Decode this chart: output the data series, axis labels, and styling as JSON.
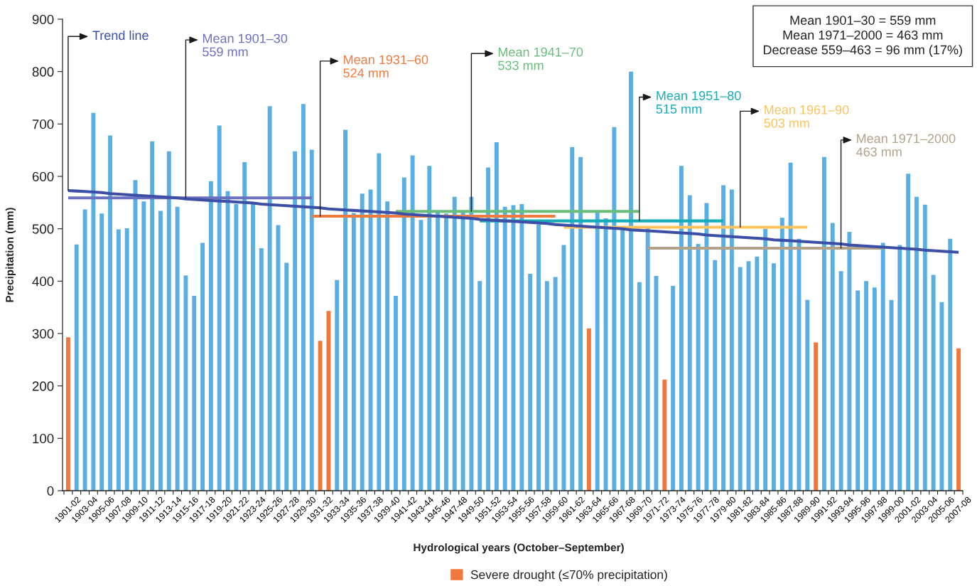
{
  "chart_data": {
    "type": "bar",
    "xlabel": "Hydrological years (October–September)",
    "ylabel": "Precipitation (mm)",
    "categories": [
      "1901-02",
      null,
      "1903-04",
      null,
      "1905-06",
      null,
      "1907-08",
      null,
      "1909-10",
      null,
      "1911-12",
      null,
      "1913-14",
      null,
      "1915-16",
      null,
      "1917-18",
      null,
      "1919-20",
      null,
      "1921-22",
      null,
      "1923-24",
      null,
      "1925-26",
      null,
      "1927-28",
      null,
      "1929-30",
      null,
      "1931-32",
      null,
      "1933-34",
      null,
      "1935-36",
      null,
      "1937-38",
      null,
      "1939-40",
      null,
      "1941-42",
      null,
      "1943-44",
      null,
      "1945-46",
      null,
      "1947-48",
      null,
      "1949-50",
      null,
      "1951-52",
      null,
      "1953-54",
      null,
      "1955-56",
      null,
      "1957-58",
      null,
      "1959-60",
      null,
      "1961-62",
      null,
      "1963-64",
      null,
      "1965-66",
      null,
      "1967-68",
      null,
      "1969-70",
      null,
      "1971-72",
      null,
      "1973-74",
      null,
      "1975-76",
      null,
      "1977-78",
      null,
      "1979-80",
      null,
      "1981-82",
      null,
      "1983-84",
      null,
      "1985-86",
      null,
      "1987-88",
      null,
      "1989-90",
      null,
      "1991-92",
      null,
      "1993-94",
      null,
      "1995-96",
      null,
      "1997-98",
      null,
      "1999-00",
      null,
      "2001-02",
      null,
      "2003-04",
      null,
      "2005-06",
      null,
      "2007-08"
    ],
    "stacked": true,
    "series": [
      {
        "color": "#59afe1",
        "values": [
          null,
          470,
          537,
          721,
          529,
          678,
          499,
          501,
          593,
          552,
          667,
          534,
          648,
          542,
          411,
          372,
          473,
          591,
          697,
          572,
          547,
          627,
          547,
          463,
          734,
          507,
          435,
          648,
          738,
          651,
          null,
          null,
          402,
          689,
          530,
          567,
          575,
          644,
          552,
          372,
          598,
          640,
          517,
          620,
          535,
          529,
          561,
          533,
          561,
          400,
          617,
          665,
          542,
          545,
          547,
          414,
          508,
          400,
          408,
          469,
          656,
          637,
          null,
          533,
          520,
          694,
          500,
          800,
          398,
          502,
          410,
          null,
          391,
          620,
          564,
          471,
          549,
          440,
          583,
          575,
          427,
          438,
          447,
          500,
          434,
          521,
          626,
          481,
          364,
          null,
          637,
          511,
          419,
          494,
          382,
          400,
          388,
          473,
          364,
          469,
          605,
          561,
          546,
          412,
          360,
          481,
          null
        ]
      },
      {
        "name": "Severe drought (≤70% precipitation)",
        "color": "#f0783c",
        "values": [
          293,
          null,
          null,
          null,
          null,
          null,
          null,
          null,
          null,
          null,
          null,
          null,
          null,
          null,
          null,
          null,
          null,
          null,
          null,
          null,
          null,
          null,
          null,
          null,
          null,
          null,
          null,
          null,
          null,
          null,
          286,
          343,
          null,
          null,
          null,
          null,
          null,
          null,
          null,
          null,
          null,
          null,
          null,
          null,
          null,
          null,
          null,
          null,
          null,
          null,
          null,
          null,
          null,
          null,
          null,
          null,
          null,
          null,
          null,
          null,
          null,
          null,
          310,
          null,
          null,
          null,
          null,
          null,
          null,
          null,
          null,
          212,
          null,
          null,
          null,
          null,
          null,
          null,
          null,
          null,
          null,
          null,
          null,
          null,
          null,
          null,
          null,
          null,
          null,
          283,
          null,
          null,
          null,
          null,
          null,
          null,
          null,
          null,
          null,
          null,
          null,
          null,
          null,
          null,
          null,
          null,
          272
        ]
      },
      {
        "type": "line",
        "color": "#6a70be",
        "values": [
          559,
          559,
          559,
          559,
          559,
          559,
          559,
          559,
          559,
          559,
          559,
          559,
          559,
          559,
          559,
          559,
          559,
          559,
          559,
          559,
          559,
          559,
          559,
          559,
          559,
          559,
          559,
          559,
          559,
          559,
          null,
          null,
          null,
          null,
          null,
          null,
          null,
          null,
          null,
          null,
          null,
          null,
          null,
          null,
          null,
          null,
          null,
          null,
          null,
          null,
          null,
          null,
          null,
          null,
          null,
          null,
          null,
          null,
          null,
          null,
          null,
          null,
          null,
          null,
          null,
          null,
          null,
          null,
          null,
          null,
          null,
          null,
          null,
          null,
          null,
          null,
          null,
          null,
          null,
          null,
          null,
          null,
          null,
          null,
          null,
          null,
          null,
          null,
          null,
          null,
          null,
          null,
          null,
          null,
          null,
          null,
          null,
          null,
          null,
          null,
          null,
          null,
          null,
          null,
          null,
          null,
          null
        ]
      },
      {
        "type": "line",
        "color": "#ef7a3e",
        "values": [
          null,
          null,
          null,
          null,
          null,
          null,
          null,
          null,
          null,
          null,
          null,
          null,
          null,
          null,
          null,
          null,
          null,
          null,
          null,
          null,
          null,
          null,
          null,
          null,
          null,
          null,
          null,
          null,
          null,
          524,
          524,
          524,
          524,
          524,
          524,
          524,
          524,
          524,
          524,
          524,
          524,
          524,
          524,
          524,
          524,
          524,
          524,
          524,
          524,
          524,
          524,
          524,
          524,
          524,
          524,
          524,
          524,
          524,
          524,
          null,
          null,
          null,
          null,
          null,
          null,
          null,
          null,
          null,
          null,
          null,
          null,
          null,
          null,
          null,
          null,
          null,
          null,
          null,
          null,
          null,
          null,
          null,
          null,
          null,
          null,
          null,
          null,
          null,
          null,
          null,
          null,
          null,
          null,
          null,
          null,
          null,
          null,
          null,
          null,
          null,
          null,
          null,
          null,
          null,
          null,
          null,
          null
        ]
      },
      {
        "type": "line",
        "color": "#68bd78",
        "values": [
          null,
          null,
          null,
          null,
          null,
          null,
          null,
          null,
          null,
          null,
          null,
          null,
          null,
          null,
          null,
          null,
          null,
          null,
          null,
          null,
          null,
          null,
          null,
          null,
          null,
          null,
          null,
          null,
          null,
          null,
          null,
          null,
          null,
          null,
          null,
          null,
          null,
          null,
          null,
          533,
          533,
          533,
          533,
          533,
          533,
          533,
          533,
          533,
          533,
          533,
          533,
          533,
          533,
          533,
          533,
          533,
          533,
          533,
          533,
          533,
          533,
          533,
          533,
          533,
          533,
          533,
          533,
          533,
          533,
          null,
          null,
          null,
          null,
          null,
          null,
          null,
          null,
          null,
          null,
          null,
          null,
          null,
          null,
          null,
          null,
          null,
          null,
          null,
          null,
          null,
          null,
          null,
          null,
          null,
          null,
          null,
          null,
          null,
          null,
          null,
          null,
          null,
          null,
          null,
          null,
          null,
          null
        ]
      },
      {
        "type": "line",
        "color": "#15adb7",
        "values": [
          null,
          null,
          null,
          null,
          null,
          null,
          null,
          null,
          null,
          null,
          null,
          null,
          null,
          null,
          null,
          null,
          null,
          null,
          null,
          null,
          null,
          null,
          null,
          null,
          null,
          null,
          null,
          null,
          null,
          null,
          null,
          null,
          null,
          null,
          null,
          null,
          null,
          null,
          null,
          null,
          null,
          null,
          null,
          null,
          null,
          null,
          null,
          null,
          null,
          515,
          515,
          515,
          515,
          515,
          515,
          515,
          515,
          515,
          515,
          515,
          515,
          515,
          515,
          515,
          515,
          515,
          515,
          515,
          515,
          515,
          515,
          515,
          515,
          515,
          515,
          515,
          515,
          515,
          515,
          null,
          null,
          null,
          null,
          null,
          null,
          null,
          null,
          null,
          null,
          null,
          null,
          null,
          null,
          null,
          null,
          null,
          null,
          null,
          null,
          null,
          null,
          null,
          null,
          null,
          null,
          null,
          null
        ]
      },
      {
        "type": "line",
        "color": "#fdc35a",
        "values": [
          null,
          null,
          null,
          null,
          null,
          null,
          null,
          null,
          null,
          null,
          null,
          null,
          null,
          null,
          null,
          null,
          null,
          null,
          null,
          null,
          null,
          null,
          null,
          null,
          null,
          null,
          null,
          null,
          null,
          null,
          null,
          null,
          null,
          null,
          null,
          null,
          null,
          null,
          null,
          null,
          null,
          null,
          null,
          null,
          null,
          null,
          null,
          null,
          null,
          null,
          null,
          null,
          null,
          null,
          null,
          null,
          null,
          null,
          null,
          503,
          503,
          503,
          503,
          503,
          503,
          503,
          503,
          503,
          503,
          503,
          503,
          503,
          503,
          503,
          503,
          503,
          503,
          503,
          503,
          503,
          503,
          503,
          503,
          503,
          503,
          503,
          503,
          503,
          503,
          null,
          null,
          null,
          null,
          null,
          null,
          null,
          null,
          null,
          null,
          null,
          null,
          null,
          null,
          null,
          null,
          null,
          null
        ]
      },
      {
        "type": "line",
        "color": "#b2a289",
        "values": [
          null,
          null,
          null,
          null,
          null,
          null,
          null,
          null,
          null,
          null,
          null,
          null,
          null,
          null,
          null,
          null,
          null,
          null,
          null,
          null,
          null,
          null,
          null,
          null,
          null,
          null,
          null,
          null,
          null,
          null,
          null,
          null,
          null,
          null,
          null,
          null,
          null,
          null,
          null,
          null,
          null,
          null,
          null,
          null,
          null,
          null,
          null,
          null,
          null,
          null,
          null,
          null,
          null,
          null,
          null,
          null,
          null,
          null,
          null,
          null,
          null,
          null,
          null,
          null,
          null,
          null,
          null,
          null,
          null,
          463,
          463,
          463,
          463,
          463,
          463,
          463,
          463,
          463,
          463,
          463,
          463,
          463,
          463,
          463,
          463,
          463,
          463,
          463,
          463,
          463,
          463,
          463,
          463,
          463,
          463,
          463,
          463,
          463,
          null,
          null,
          null,
          null,
          null,
          null,
          null,
          null,
          null
        ]
      },
      {
        "type": "line",
        "color": "#3c4ea6",
        "values": [
          573,
          572,
          571,
          570,
          569,
          567,
          566,
          565,
          564,
          563,
          562,
          561,
          560,
          559,
          557,
          556,
          555,
          554,
          553,
          552,
          551,
          550,
          549,
          547,
          546,
          545,
          544,
          543,
          542,
          541,
          540,
          538,
          537,
          536,
          535,
          534,
          533,
          532,
          531,
          530,
          528,
          527,
          526,
          525,
          524,
          523,
          522,
          521,
          520,
          518,
          517,
          516,
          515,
          514,
          513,
          512,
          511,
          510,
          508,
          507,
          506,
          505,
          504,
          503,
          502,
          501,
          500,
          498,
          497,
          496,
          495,
          494,
          493,
          492,
          491,
          490,
          488,
          487,
          486,
          485,
          484,
          483,
          482,
          481,
          479,
          478,
          477,
          476,
          475,
          474,
          473,
          472,
          471,
          469,
          468,
          467,
          466,
          465,
          464,
          463,
          462,
          461,
          459,
          458,
          457,
          456,
          455
        ]
      }
    ],
    "ylim": [
      0,
      900
    ],
    "yticks": [
      0,
      100,
      200,
      300,
      400,
      500,
      600,
      700,
      800,
      900
    ],
    "grid": false,
    "legend": "bottom",
    "annotations": [
      {
        "text": "Trend line",
        "x": "1901-02",
        "y": 573
      },
      {
        "text": "Mean 1901–30\n559 mm",
        "x": "1915-16",
        "y": 559
      },
      {
        "text": "Mean 1931–60\n524 mm",
        "x": "1931-32",
        "y": 524
      },
      {
        "text": "Mean 1941–70\n533 mm",
        "x": "1949-50",
        "y": 533
      },
      {
        "text": "Mean 1951–80\n515 mm",
        "x": "1969-70",
        "y": 515
      },
      {
        "text": "Mean 1961–90\n503 mm",
        "x": "1981-82",
        "y": 503
      },
      {
        "text": "Mean 1971–2000\n463 mm",
        "x": "1993-94",
        "y": 463
      },
      "Mean 1901–30 = 559 mm\nMean 1971–2000 = 463 mm\nDecrease 559–463 = 96 mm (17%)"
    ]
  }
}
